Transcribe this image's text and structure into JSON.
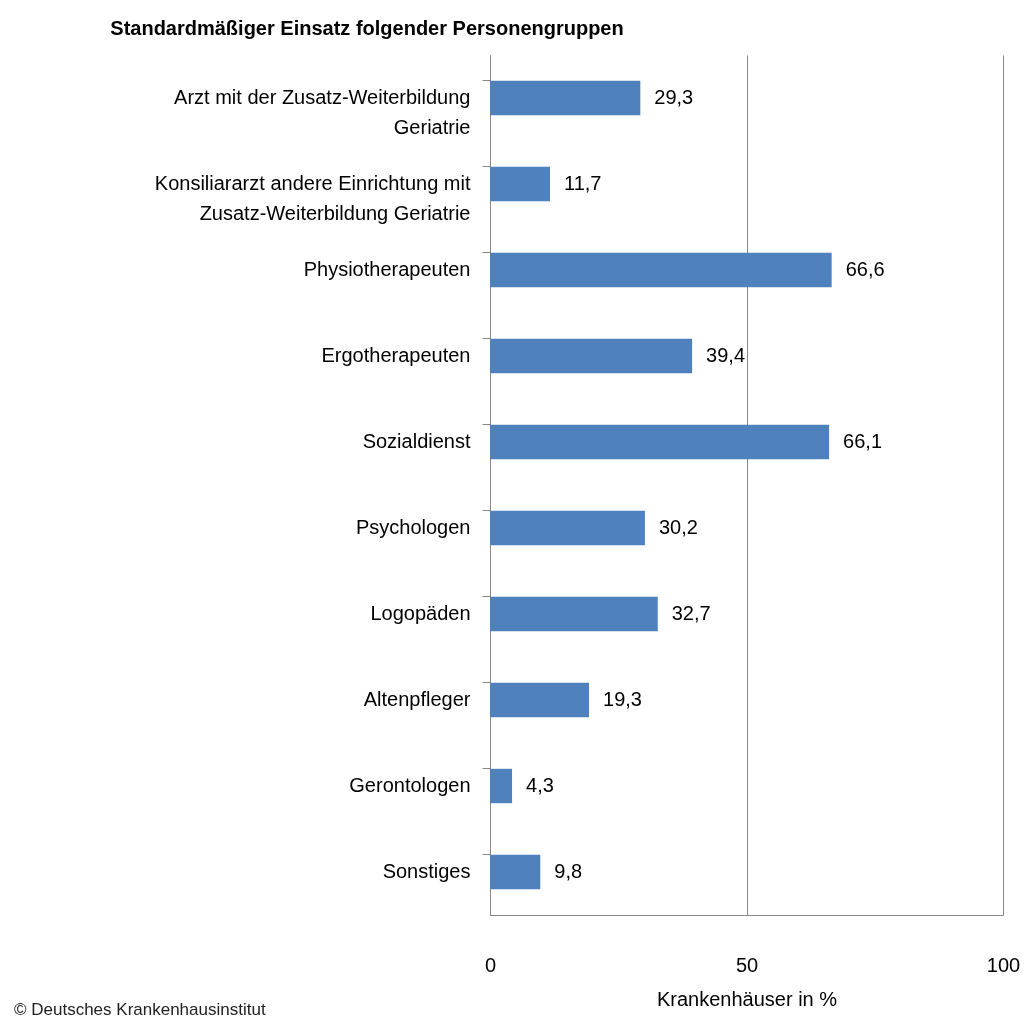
{
  "chart_data": {
    "type": "bar",
    "orientation": "horizontal",
    "title": "Standardmäßiger Einsatz folgender Personengruppen",
    "xlabel": "Krankenhäuser in %",
    "categories": [
      "Arzt mit der Zusatz-Weiterbildung\nGeriatrie",
      "Konsiliararzt andere Einrichtung mit\nZusatz-Weiterbildung Geriatrie",
      "Physiotherapeuten",
      "Ergotherapeuten",
      "Sozialdienst",
      "Psychologen",
      "Logopäden",
      "Altenpfleger",
      "Gerontologen",
      "Sonstiges"
    ],
    "values": [
      29.3,
      11.7,
      66.6,
      39.4,
      66.1,
      30.2,
      32.7,
      19.3,
      4.3,
      9.8
    ],
    "value_labels": [
      "29,3",
      "11,7",
      "66,6",
      "39,4",
      "66,1",
      "30,2",
      "32,7",
      "19,3",
      "4,3",
      "9,8"
    ],
    "color": "#4f81bd",
    "xlim": [
      0,
      100
    ],
    "xticks": [
      0,
      50,
      100
    ],
    "grid": "x",
    "annotations": [
      "© Deutsches Krankenhausinstitut"
    ]
  }
}
